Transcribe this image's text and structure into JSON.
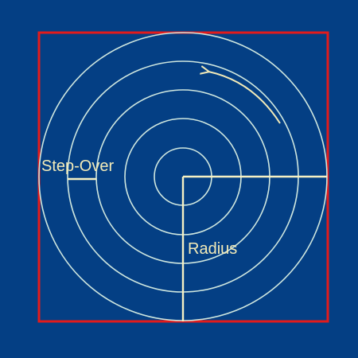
{
  "diagram": {
    "labels": {
      "step_over": "Step-Over",
      "radius": "Radius"
    },
    "ring_count": 5,
    "colors": {
      "background": "#043f84",
      "boundary": "#e31b1b",
      "rings": "#cfe7df",
      "guide_lines": "#f6f1c4",
      "label_text": "#f3ebb8",
      "arrow": "#f3ebb8"
    }
  }
}
